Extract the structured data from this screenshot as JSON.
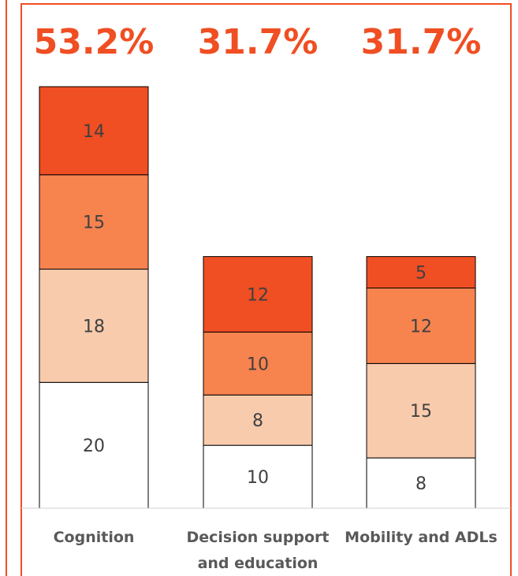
{
  "chart_data": {
    "type": "stacked_bar",
    "headline_labels": [
      "53.2%",
      "31.7%",
      "31.7%"
    ],
    "categories": [
      "Cognition",
      "Decision support and education",
      "Mobility and ADLs"
    ],
    "series": [
      {
        "color": "#ffffff",
        "values": [
          20,
          10,
          8
        ]
      },
      {
        "color": "#f8cbad",
        "values": [
          18,
          8,
          15
        ]
      },
      {
        "color": "#f7834f",
        "values": [
          15,
          10,
          12
        ]
      },
      {
        "color": "#f04e23",
        "values": [
          14,
          12,
          5
        ]
      }
    ],
    "ylim": [
      0,
      67
    ]
  }
}
